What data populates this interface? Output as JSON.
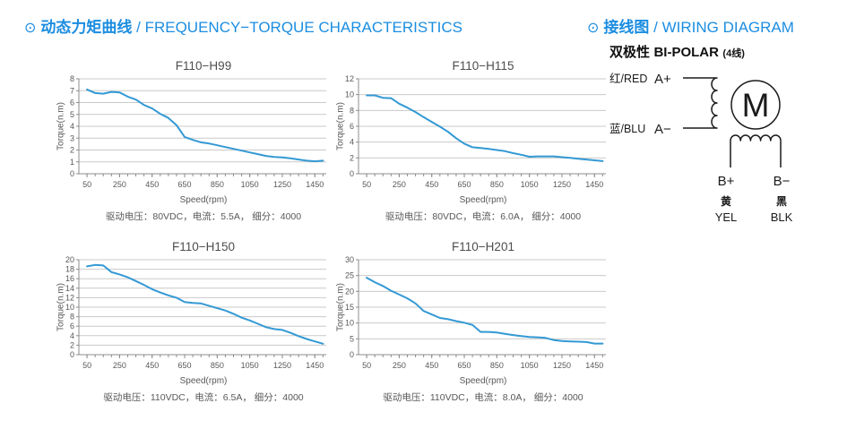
{
  "header_left": {
    "icon": "⊙",
    "title_cn": "动态力矩曲线",
    "title_sep": " / ",
    "title_en": "FREQUENCY−TORQUE CHARACTERISTICS"
  },
  "header_right": {
    "icon": "⊙",
    "title_cn": "接线图",
    "title_sep": " / ",
    "title_en": "WIRING DIAGRAM"
  },
  "wiring": {
    "subtitle_cn": "双极性",
    "subtitle_en": "BI-POLAR",
    "subtitle_note": "(4线)",
    "motor_label": "M",
    "phase_a_plus_wire": "红/RED",
    "phase_a_plus_terminal": "A+",
    "phase_a_minus_wire": "蓝/BLU",
    "phase_a_minus_terminal": "A−",
    "phase_b_plus_terminal": "B+",
    "phase_b_minus_terminal": "B−",
    "b_plus_color_cn": "黄",
    "b_plus_color_en": "YEL",
    "b_minus_color_cn": "黑",
    "b_minus_color_en": "BLK"
  },
  "colors": {
    "accent_blue": "#1b8de0",
    "curve_blue": "#3399d4",
    "grid": "#c9c9c9",
    "axis": "#8c8c8c",
    "text_dark": "#4d4d4d",
    "text_gray": "#595757",
    "wiring_black": "#1a1a1a"
  },
  "chart_data": [
    {
      "type": "line",
      "title": "F110−H99",
      "xlabel": "Speed(rpm)",
      "ylabel": "Torque(n.m)",
      "caption": "驱动电压：80VDC，电流：5.5A， 细分：4000",
      "ylim": [
        0,
        8
      ],
      "ytick_step": 1,
      "xlim": [
        0,
        1520
      ],
      "xticks_labeled": [
        50,
        250,
        450,
        650,
        850,
        1050,
        1250,
        1450
      ],
      "xtick_minor_step": 50,
      "xtick_minor_range": [
        50,
        1500
      ],
      "grid": "horizontal",
      "x": [
        50,
        100,
        150,
        200,
        250,
        300,
        350,
        400,
        450,
        500,
        550,
        600,
        650,
        700,
        750,
        800,
        850,
        900,
        950,
        1000,
        1050,
        1100,
        1150,
        1200,
        1250,
        1300,
        1350,
        1400,
        1450,
        1500
      ],
      "y": [
        7.1,
        6.8,
        6.75,
        6.9,
        6.85,
        6.5,
        6.25,
        5.8,
        5.5,
        5.05,
        4.7,
        4.1,
        3.1,
        2.85,
        2.65,
        2.55,
        2.4,
        2.25,
        2.1,
        1.95,
        1.8,
        1.65,
        1.5,
        1.42,
        1.38,
        1.3,
        1.2,
        1.1,
        1.05,
        1.1
      ]
    },
    {
      "type": "line",
      "title": "F110−H115",
      "xlabel": "Speed(rpm)",
      "ylabel": "Torque(n.m)",
      "caption": "驱动电压：80VDC，电流：6.0A， 细分：4000",
      "ylim": [
        0,
        12
      ],
      "ytick_step": 2,
      "xlim": [
        0,
        1520
      ],
      "xticks_labeled": [
        50,
        250,
        450,
        650,
        850,
        1050,
        1250,
        1450
      ],
      "xtick_minor_step": 50,
      "xtick_minor_range": [
        50,
        1500
      ],
      "grid": "horizontal",
      "x": [
        50,
        100,
        150,
        200,
        250,
        300,
        350,
        400,
        450,
        500,
        550,
        600,
        650,
        700,
        750,
        800,
        850,
        900,
        950,
        1000,
        1050,
        1100,
        1150,
        1200,
        1250,
        1300,
        1350,
        1400,
        1450,
        1500
      ],
      "y": [
        9.9,
        9.9,
        9.6,
        9.55,
        8.85,
        8.35,
        7.8,
        7.15,
        6.55,
        5.95,
        5.3,
        4.5,
        3.8,
        3.35,
        3.25,
        3.15,
        3.0,
        2.85,
        2.6,
        2.4,
        2.15,
        2.2,
        2.2,
        2.2,
        2.1,
        2.0,
        1.9,
        1.8,
        1.7,
        1.6
      ]
    },
    {
      "type": "line",
      "title": "F110−H150",
      "xlabel": "Speed(rpm)",
      "ylabel": "Torque(n.m)",
      "caption": "驱动电压：110VDC，电流：6.5A， 细分：4000",
      "ylim": [
        0,
        20
      ],
      "ytick_step": 2,
      "xlim": [
        0,
        1520
      ],
      "xticks_labeled": [
        50,
        250,
        450,
        650,
        850,
        1050,
        1250,
        1450
      ],
      "xtick_minor_step": 50,
      "xtick_minor_range": [
        50,
        1500
      ],
      "grid": "horizontal",
      "x": [
        50,
        100,
        150,
        200,
        250,
        300,
        350,
        400,
        450,
        500,
        550,
        600,
        650,
        700,
        750,
        800,
        850,
        900,
        950,
        1000,
        1050,
        1100,
        1150,
        1200,
        1250,
        1300,
        1350,
        1400,
        1450,
        1500
      ],
      "y": [
        18.6,
        18.9,
        18.8,
        17.4,
        16.9,
        16.3,
        15.5,
        14.7,
        13.8,
        13.1,
        12.5,
        12.0,
        11.1,
        10.9,
        10.8,
        10.3,
        9.8,
        9.3,
        8.6,
        7.8,
        7.2,
        6.5,
        5.8,
        5.4,
        5.2,
        4.6,
        3.9,
        3.3,
        2.8,
        2.3
      ]
    },
    {
      "type": "line",
      "title": "F110−H201",
      "xlabel": "Speed(rpm)",
      "ylabel": "Torque(n.m)",
      "caption": "驱动电压：110VDC，电流：8.0A， 细分：4000",
      "ylim": [
        0,
        30
      ],
      "ytick_step": 5,
      "xlim": [
        0,
        1520
      ],
      "xticks_labeled": [
        50,
        250,
        450,
        650,
        850,
        1050,
        1250,
        1450
      ],
      "xtick_minor_step": 50,
      "xtick_minor_range": [
        50,
        1500
      ],
      "grid": "horizontal",
      "x": [
        50,
        100,
        150,
        200,
        250,
        300,
        350,
        400,
        450,
        500,
        550,
        600,
        650,
        700,
        750,
        800,
        850,
        900,
        950,
        1000,
        1050,
        1100,
        1150,
        1200,
        1250,
        1300,
        1350,
        1400,
        1450,
        1500
      ],
      "y": [
        24.3,
        22.9,
        21.7,
        20.2,
        19.0,
        17.8,
        16.2,
        13.8,
        12.7,
        11.6,
        11.2,
        10.6,
        10.1,
        9.4,
        7.2,
        7.2,
        7.0,
        6.6,
        6.2,
        5.9,
        5.6,
        5.5,
        5.3,
        4.6,
        4.3,
        4.2,
        4.1,
        4.0,
        3.5,
        3.5
      ]
    }
  ]
}
